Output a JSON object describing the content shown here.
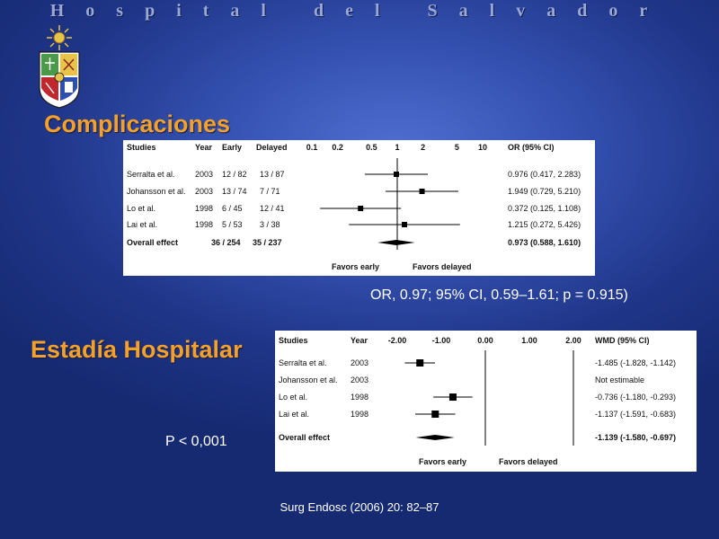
{
  "header": {
    "title": "Hospital del Salvador"
  },
  "logo": {
    "icon": "university-crest-icon",
    "colors": {
      "gold": "#e8c34a",
      "red": "#c0282d",
      "green": "#4a9a4a",
      "blue": "#2c4fb0"
    }
  },
  "sections": {
    "complicaciones": {
      "title": "Complicaciones"
    },
    "estadia": {
      "title": "Estadía Hospitalar"
    }
  },
  "notes": {
    "or_summary": "OR, 0.97; 95% CI, 0.59–1.61; p = 0.915)",
    "p_value": "P < 0,001",
    "citation": "Surg Endosc (2006) 20: 82–87"
  },
  "chart_data": [
    {
      "type": "forest",
      "scale": "log",
      "headers": {
        "studies": "Studies",
        "year": "Year",
        "early": "Early",
        "delayed": "Delayed",
        "effect": "OR (95% CI)"
      },
      "ticks": [
        0.1,
        0.2,
        0.5,
        1,
        2,
        5,
        10
      ],
      "tick_labels": [
        "0.1",
        "0.2",
        "0.5",
        "1",
        "2",
        "5",
        "10"
      ],
      "xlim": [
        0.1,
        10
      ],
      "reference": 1,
      "footer": {
        "left": "Favors early",
        "right": "Favors delayed"
      },
      "studies": [
        {
          "name": "Serralta et al.",
          "year": "2003",
          "early": "12 / 82",
          "delayed": "13 / 87",
          "estimate": 0.976,
          "lower": 0.417,
          "upper": 2.283,
          "effect_text": "0.976 (0.417, 2.283)"
        },
        {
          "name": "Johansson et al.",
          "year": "2003",
          "early": "13 / 74",
          "delayed": "7 / 71",
          "estimate": 1.949,
          "lower": 0.729,
          "upper": 5.21,
          "effect_text": "1.949 (0.729, 5.210)"
        },
        {
          "name": "Lo et al.",
          "year": "1998",
          "early": "6 / 45",
          "delayed": "12 / 41",
          "estimate": 0.372,
          "lower": 0.125,
          "upper": 1.108,
          "effect_text": "0.372 (0.125, 1.108)"
        },
        {
          "name": "Lai et al.",
          "year": "1998",
          "early": "5 / 53",
          "delayed": "3 / 38",
          "estimate": 1.215,
          "lower": 0.272,
          "upper": 5.426,
          "effect_text": "1.215 (0.272, 5.426)"
        }
      ],
      "overall": {
        "name": "Overall effect",
        "early": "36 / 254",
        "delayed": "35 / 237",
        "estimate": 0.973,
        "lower": 0.588,
        "upper": 1.61,
        "effect_text": "0.973 (0.588, 1.610)"
      }
    },
    {
      "type": "forest",
      "scale": "linear",
      "headers": {
        "studies": "Studies",
        "year": "Year",
        "effect": "WMD (95% CI)"
      },
      "ticks": [
        -2,
        -1,
        0,
        1,
        2
      ],
      "tick_labels": [
        "-2.00",
        "-1.00",
        "0.00",
        "1.00",
        "2.00"
      ],
      "xlim": [
        -2,
        2
      ],
      "reference": 0,
      "footer": {
        "left": "Favors early",
        "right": "Favors delayed"
      },
      "studies": [
        {
          "name": "Serralta et al.",
          "year": "2003",
          "estimate": -1.485,
          "lower": -1.828,
          "upper": -1.142,
          "effect_text": "-1.485 (-1.828, -1.142)"
        },
        {
          "name": "Johansson et al.",
          "year": "2003",
          "estimate": null,
          "lower": null,
          "upper": null,
          "effect_text": "Not estimable"
        },
        {
          "name": "Lo et al.",
          "year": "1998",
          "estimate": -0.736,
          "lower": -1.18,
          "upper": -0.293,
          "effect_text": "-0.736 (-1.180, -0.293)"
        },
        {
          "name": "Lai et al.",
          "year": "1998",
          "estimate": -1.137,
          "lower": -1.591,
          "upper": -0.683,
          "effect_text": "-1.137 (-1.591, -0.683)"
        }
      ],
      "overall": {
        "name": "Overall effect",
        "estimate": -1.139,
        "lower": -1.58,
        "upper": -0.697,
        "effect_text": "-1.139 (-1.580, -0.697)"
      }
    }
  ]
}
